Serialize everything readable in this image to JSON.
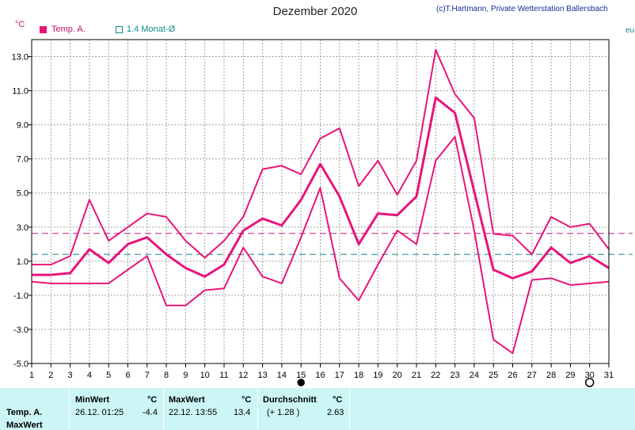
{
  "header": {
    "title": "Dezember 2020",
    "credit": "(c)T.Hartmann, Private Wetterstation Ballersbach",
    "unit": "°C"
  },
  "legend": {
    "temp_label": "Temp. A.",
    "avg_label": "1.4 Monat-Ø",
    "edge_label": "eu"
  },
  "colors": {
    "series": "#e8157a",
    "avg_line": "#14888a",
    "ref_line": "#c0207f",
    "grid": "#a0a0a0",
    "panel_bg": "#ccf6f6"
  },
  "chart_data": {
    "type": "line",
    "x": [
      1,
      2,
      3,
      4,
      5,
      6,
      7,
      8,
      9,
      10,
      11,
      12,
      13,
      14,
      15,
      16,
      17,
      18,
      19,
      20,
      21,
      22,
      23,
      24,
      25,
      26,
      27,
      28,
      29,
      30,
      31
    ],
    "series": [
      {
        "name": "Temp. A.",
        "role": "max",
        "values": [
          0.8,
          0.8,
          1.3,
          4.6,
          2.2,
          3.0,
          3.8,
          3.6,
          2.2,
          1.2,
          2.2,
          3.6,
          6.4,
          6.6,
          6.1,
          8.2,
          8.8,
          5.4,
          6.9,
          4.9,
          6.9,
          13.4,
          10.8,
          9.4,
          2.6,
          2.5,
          1.4,
          3.6,
          3.0,
          3.2,
          1.7
        ]
      },
      {
        "name": "Temp. A.",
        "role": "mean",
        "values": [
          0.2,
          0.2,
          0.3,
          1.7,
          0.9,
          2.0,
          2.4,
          1.4,
          0.6,
          0.1,
          0.8,
          2.8,
          3.5,
          3.1,
          4.6,
          6.7,
          4.8,
          2.0,
          3.8,
          3.7,
          4.8,
          10.6,
          9.7,
          5.1,
          0.5,
          0.0,
          0.4,
          1.8,
          0.9,
          1.3,
          0.6
        ]
      },
      {
        "name": "Temp. A.",
        "role": "min",
        "values": [
          -0.2,
          -0.3,
          -0.3,
          -0.3,
          -0.3,
          0.5,
          1.3,
          -1.6,
          -1.6,
          -0.7,
          -0.6,
          1.8,
          0.1,
          -0.3,
          2.4,
          5.3,
          0.0,
          -1.3,
          0.8,
          2.8,
          2.0,
          6.9,
          8.3,
          2.8,
          -3.6,
          -4.4,
          -0.1,
          0.0,
          -0.4,
          -0.3,
          -0.2
        ]
      }
    ],
    "reference_lines": [
      {
        "name": "1.4 Monat-Ø",
        "value": 1.4,
        "style": "dashed"
      },
      {
        "value": 2.63,
        "style": "dashed"
      }
    ],
    "y_ticks": [
      "13.0",
      "11.0",
      "9.0",
      "7.0",
      "5.0",
      "3.0",
      "1.0",
      "-1.0",
      "-3.0",
      "-5.0"
    ],
    "x_ticks": [
      "1",
      "2",
      "3",
      "4",
      "5",
      "6",
      "7",
      "8",
      "9",
      "10",
      "11",
      "12",
      "13",
      "14",
      "15",
      "16",
      "17",
      "18",
      "19",
      "20",
      "21",
      "22",
      "23",
      "24",
      "25",
      "26",
      "27",
      "28",
      "29",
      "30",
      "31"
    ],
    "ylim": [
      -5.0,
      14.0
    ],
    "xlim": [
      1,
      31
    ],
    "grid": true,
    "markers": [
      {
        "shape": "filled-circle",
        "x": 15
      },
      {
        "shape": "open-circle",
        "x": 30
      }
    ]
  },
  "stats": {
    "row_label_1": "Temp. A.",
    "row_label_2": "MaxWert",
    "min_header": "MinWert",
    "min_unit": "°C",
    "min_time": "26.12.  01:25",
    "min_value": "-4.4",
    "max_header": "MaxWert",
    "max_unit": "°C",
    "max_time": "22.12.  13:55",
    "max_value": "13.4",
    "avg_header": "Durchschnitt",
    "avg_unit": "°C",
    "avg_delta": "(+ 1.28 )",
    "avg_value": "2.63"
  }
}
